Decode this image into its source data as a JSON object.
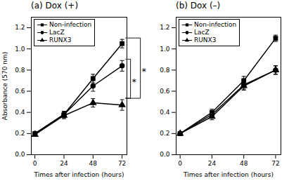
{
  "chart_data": [
    {
      "type": "line",
      "title": "(a) Dox (+)",
      "xlabel": "Times after infection (hours)",
      "ylabel": "Absorbance (570 nm)",
      "x": [
        0,
        24,
        48,
        72
      ],
      "series": [
        {
          "name": "Non-infection",
          "color": "black",
          "marker": "square",
          "values": [
            0.2,
            0.38,
            0.72,
            1.05
          ],
          "errors": [
            0.01,
            0.03,
            0.04,
            0.04
          ]
        },
        {
          "name": "LacZ",
          "color": "black",
          "marker": "circle",
          "values": [
            0.2,
            0.38,
            0.65,
            0.84
          ],
          "errors": [
            0.01,
            0.03,
            0.05,
            0.05
          ]
        },
        {
          "name": "RUNX3",
          "color": "black",
          "marker": "triangle",
          "values": [
            0.19,
            0.37,
            0.49,
            0.47
          ],
          "errors": [
            0.01,
            0.03,
            0.04,
            0.05
          ]
        }
      ],
      "xlim": [
        -3,
        76
      ],
      "xticks": [
        0,
        24,
        48,
        72
      ],
      "ylim": [
        0,
        1.3
      ],
      "yticks": [
        {
          "value": 0,
          "label": "0.0"
        },
        0.2,
        0.4,
        0.6,
        0.8,
        {
          "value": 1.0,
          "label": "1.0"
        },
        1.2
      ],
      "grid": false,
      "legend": "upper left",
      "annotations": [
        {
          "text": "*",
          "x": 72,
          "series": [
            "Non-infection",
            "RUNX3"
          ]
        },
        {
          "text": "*",
          "x": 72,
          "series": [
            "LacZ",
            "RUNX3"
          ]
        }
      ]
    },
    {
      "type": "line",
      "title": "(b) Dox (–)",
      "xlabel": "Times after infection (hours)",
      "x": [
        0,
        24,
        48,
        72
      ],
      "series": [
        {
          "name": "Non-infection",
          "color": "black",
          "marker": "square",
          "values": [
            0.2,
            0.4,
            0.7,
            1.1
          ],
          "errors": [
            0.01,
            0.03,
            0.04,
            0.03
          ]
        },
        {
          "name": "LacZ",
          "color": "black",
          "marker": "circle",
          "values": [
            0.2,
            0.38,
            0.66,
            0.8
          ],
          "errors": [
            0.01,
            0.03,
            0.04,
            0.04
          ]
        },
        {
          "name": "RUNX3",
          "color": "black",
          "marker": "triangle",
          "values": [
            0.2,
            0.36,
            0.65,
            0.8
          ],
          "errors": [
            0.01,
            0.03,
            0.04,
            0.04
          ]
        }
      ],
      "xlim": [
        -3,
        76
      ],
      "xticks": [
        0,
        24,
        48,
        72
      ],
      "ylim": [
        0,
        1.3
      ],
      "yticks": [
        {
          "value": 0,
          "label": "0.0"
        },
        0.2,
        0.4,
        0.6,
        0.8,
        {
          "value": 1.0,
          "label": "1.0"
        },
        1.2
      ],
      "grid": false,
      "legend": "upper left"
    }
  ]
}
